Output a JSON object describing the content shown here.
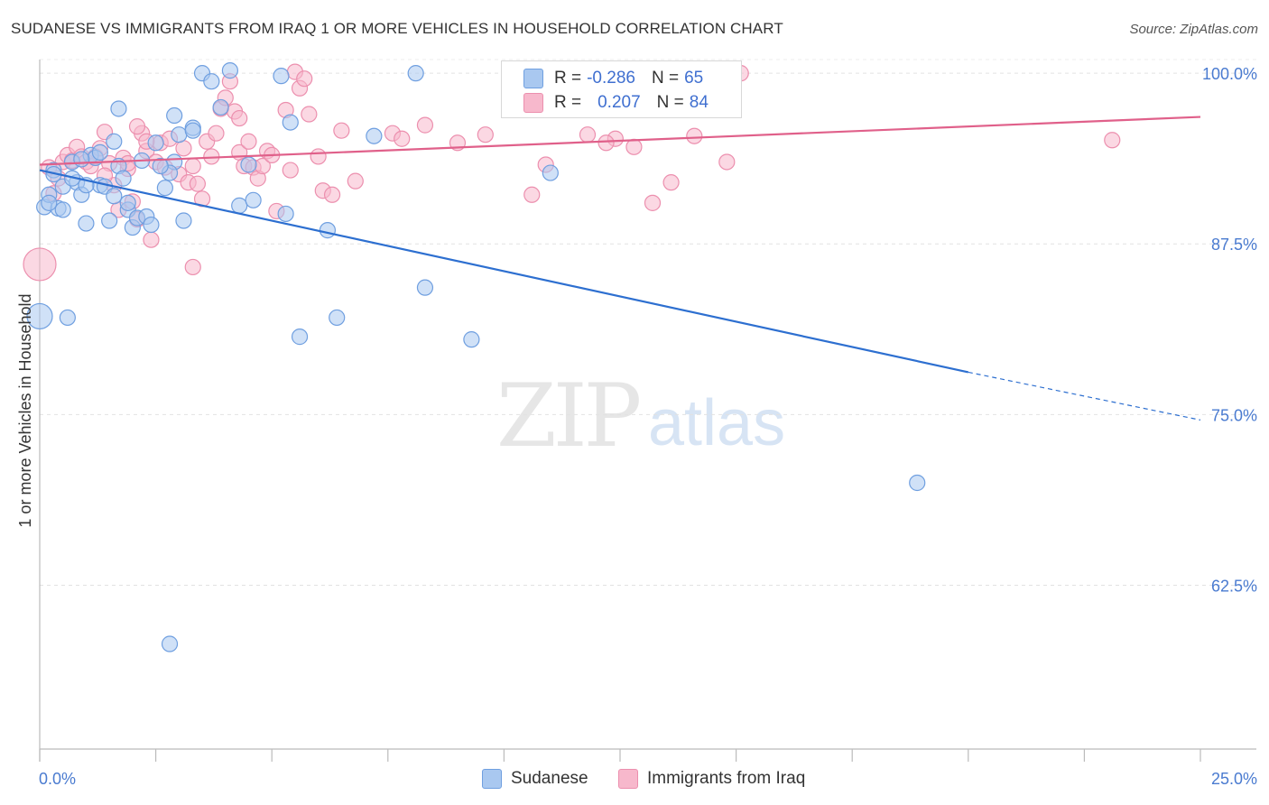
{
  "header": {
    "title": "SUDANESE VS IMMIGRANTS FROM IRAQ 1 OR MORE VEHICLES IN HOUSEHOLD CORRELATION CHART",
    "source": "Source: ZipAtlas.com"
  },
  "watermark": {
    "zip": "ZIP",
    "atlas": "atlas"
  },
  "legend": {
    "rows": [
      {
        "r_label": "R =",
        "r_value": "-0.286",
        "n_label": "N =",
        "n_value": "65",
        "color": "#a9c8f0"
      },
      {
        "r_label": "R =",
        "r_value": "0.207",
        "n_label": "N =",
        "n_value": "84",
        "color": "#f7b8cc"
      }
    ]
  },
  "bottom_legend": {
    "series1": "Sudanese",
    "series2": "Immigrants from Iraq"
  },
  "colors": {
    "sudanese_fill": "#a9c8f0",
    "sudanese_stroke": "#6f9fe0",
    "sudanese_line": "#2d6fd0",
    "iraq_fill": "#f7b8cc",
    "iraq_stroke": "#ec8fae",
    "iraq_line": "#e0608a",
    "tick_text": "#4a7bd0"
  },
  "chart_data": {
    "type": "scatter",
    "title": "SUDANESE VS IMMIGRANTS FROM IRAQ 1 OR MORE VEHICLES IN HOUSEHOLD CORRELATION CHART",
    "xlabel": "",
    "ylabel": "1 or more Vehicles in Household",
    "xlim": [
      0,
      25
    ],
    "ylim": [
      50.5,
      101
    ],
    "x_tick_labels": [
      "0.0%",
      "25.0%"
    ],
    "y_ticks": [
      62.5,
      75.0,
      87.5,
      100.0
    ],
    "y_tick_labels": [
      "62.5%",
      "75.0%",
      "87.5%",
      "100.0%"
    ],
    "grid": true,
    "legend_position": "top-center",
    "series": [
      {
        "name": "Sudanese",
        "trend": {
          "x": [
            0,
            20,
            25
          ],
          "y": [
            92.9,
            78.1,
            74.6
          ],
          "solid_until": 20
        },
        "points": [
          [
            0.1,
            90.2
          ],
          [
            0.2,
            91.1
          ],
          [
            0.3,
            92.9
          ],
          [
            0.4,
            90.1
          ],
          [
            0.5,
            91.7
          ],
          [
            0.7,
            93.5
          ],
          [
            0.8,
            92.0
          ],
          [
            0.9,
            91.1
          ],
          [
            1.0,
            89.0
          ],
          [
            1.1,
            94.0
          ],
          [
            1.2,
            93.8
          ],
          [
            1.3,
            91.8
          ],
          [
            1.4,
            91.7
          ],
          [
            1.5,
            89.2
          ],
          [
            1.6,
            95.0
          ],
          [
            1.7,
            93.2
          ],
          [
            1.8,
            92.3
          ],
          [
            1.9,
            90.0
          ],
          [
            2.0,
            88.7
          ],
          [
            2.1,
            89.4
          ],
          [
            1.7,
            97.4
          ],
          [
            2.3,
            89.5
          ],
          [
            2.4,
            88.9
          ],
          [
            2.5,
            94.9
          ],
          [
            2.7,
            91.6
          ],
          [
            2.9,
            96.9
          ],
          [
            2.9,
            93.5
          ],
          [
            2.8,
            92.7
          ],
          [
            3.0,
            95.5
          ],
          [
            3.3,
            96.0
          ],
          [
            3.5,
            100.0
          ],
          [
            3.7,
            99.4
          ],
          [
            3.9,
            97.5
          ],
          [
            4.1,
            100.2
          ],
          [
            4.3,
            90.3
          ],
          [
            4.5,
            93.3
          ],
          [
            5.2,
            99.8
          ],
          [
            5.4,
            96.4
          ],
          [
            5.3,
            89.7
          ],
          [
            5.6,
            80.7
          ],
          [
            6.2,
            88.5
          ],
          [
            6.4,
            82.1
          ],
          [
            7.2,
            95.4
          ],
          [
            8.1,
            100.0
          ],
          [
            8.3,
            84.3
          ],
          [
            9.3,
            80.5
          ],
          [
            11.0,
            92.7
          ],
          [
            18.9,
            70.0
          ],
          [
            0.0,
            82.2
          ],
          [
            0.6,
            82.1
          ],
          [
            2.8,
            58.2
          ],
          [
            0.2,
            90.5
          ],
          [
            1.0,
            91.8
          ],
          [
            1.6,
            91.0
          ],
          [
            2.2,
            93.6
          ],
          [
            3.1,
            89.2
          ],
          [
            0.5,
            90.0
          ],
          [
            0.7,
            92.3
          ],
          [
            1.3,
            94.2
          ],
          [
            2.6,
            93.2
          ],
          [
            0.9,
            93.7
          ],
          [
            1.9,
            90.5
          ],
          [
            3.3,
            95.8
          ],
          [
            0.3,
            92.6
          ],
          [
            4.6,
            90.7
          ]
        ]
      },
      {
        "name": "Immigrants from Iraq",
        "trend": {
          "x": [
            0,
            25
          ],
          "y": [
            93.3,
            96.8
          ],
          "solid_until": 25
        },
        "points": [
          [
            0.0,
            86.0
          ],
          [
            0.2,
            93.1
          ],
          [
            0.3,
            91.2
          ],
          [
            0.4,
            92.3
          ],
          [
            0.5,
            93.5
          ],
          [
            0.6,
            94.0
          ],
          [
            0.7,
            93.6
          ],
          [
            0.8,
            94.6
          ],
          [
            0.9,
            93.9
          ],
          [
            1.0,
            93.5
          ],
          [
            1.1,
            93.2
          ],
          [
            1.2,
            93.9
          ],
          [
            1.3,
            94.5
          ],
          [
            1.4,
            95.7
          ],
          [
            1.5,
            93.4
          ],
          [
            1.6,
            91.8
          ],
          [
            1.7,
            90.0
          ],
          [
            1.8,
            93.8
          ],
          [
            1.9,
            93.0
          ],
          [
            2.0,
            90.6
          ],
          [
            2.1,
            89.3
          ],
          [
            2.2,
            95.6
          ],
          [
            2.3,
            94.3
          ],
          [
            2.4,
            87.8
          ],
          [
            2.5,
            93.5
          ],
          [
            2.6,
            94.9
          ],
          [
            2.7,
            93.1
          ],
          [
            2.8,
            95.2
          ],
          [
            3.0,
            92.6
          ],
          [
            3.1,
            94.5
          ],
          [
            3.2,
            92.0
          ],
          [
            3.3,
            93.2
          ],
          [
            3.4,
            91.9
          ],
          [
            3.5,
            90.8
          ],
          [
            3.6,
            95.0
          ],
          [
            3.7,
            93.9
          ],
          [
            3.8,
            95.6
          ],
          [
            3.9,
            97.4
          ],
          [
            4.0,
            98.2
          ],
          [
            4.1,
            99.4
          ],
          [
            4.2,
            97.2
          ],
          [
            4.3,
            94.2
          ],
          [
            4.4,
            93.2
          ],
          [
            4.5,
            95.0
          ],
          [
            4.6,
            93.1
          ],
          [
            4.7,
            92.3
          ],
          [
            4.8,
            93.2
          ],
          [
            4.9,
            94.3
          ],
          [
            5.0,
            94.0
          ],
          [
            5.1,
            89.9
          ],
          [
            5.3,
            97.3
          ],
          [
            5.4,
            92.9
          ],
          [
            5.5,
            100.1
          ],
          [
            5.6,
            98.9
          ],
          [
            5.8,
            97.0
          ],
          [
            6.0,
            93.9
          ],
          [
            6.1,
            91.4
          ],
          [
            6.3,
            91.1
          ],
          [
            6.5,
            95.8
          ],
          [
            6.8,
            92.1
          ],
          [
            7.6,
            95.6
          ],
          [
            7.8,
            95.2
          ],
          [
            8.3,
            96.2
          ],
          [
            9.0,
            94.9
          ],
          [
            9.6,
            95.5
          ],
          [
            10.6,
            91.1
          ],
          [
            10.9,
            93.3
          ],
          [
            11.8,
            95.5
          ],
          [
            12.4,
            95.2
          ],
          [
            12.2,
            94.9
          ],
          [
            12.8,
            94.6
          ],
          [
            13.2,
            90.5
          ],
          [
            13.6,
            92.0
          ],
          [
            14.1,
            95.4
          ],
          [
            14.8,
            93.5
          ],
          [
            15.1,
            100.0
          ],
          [
            23.1,
            95.1
          ],
          [
            1.9,
            93.4
          ],
          [
            2.3,
            95.0
          ],
          [
            3.3,
            85.8
          ],
          [
            2.1,
            96.1
          ],
          [
            1.4,
            92.5
          ],
          [
            4.3,
            96.7
          ],
          [
            5.7,
            99.6
          ]
        ]
      }
    ]
  }
}
